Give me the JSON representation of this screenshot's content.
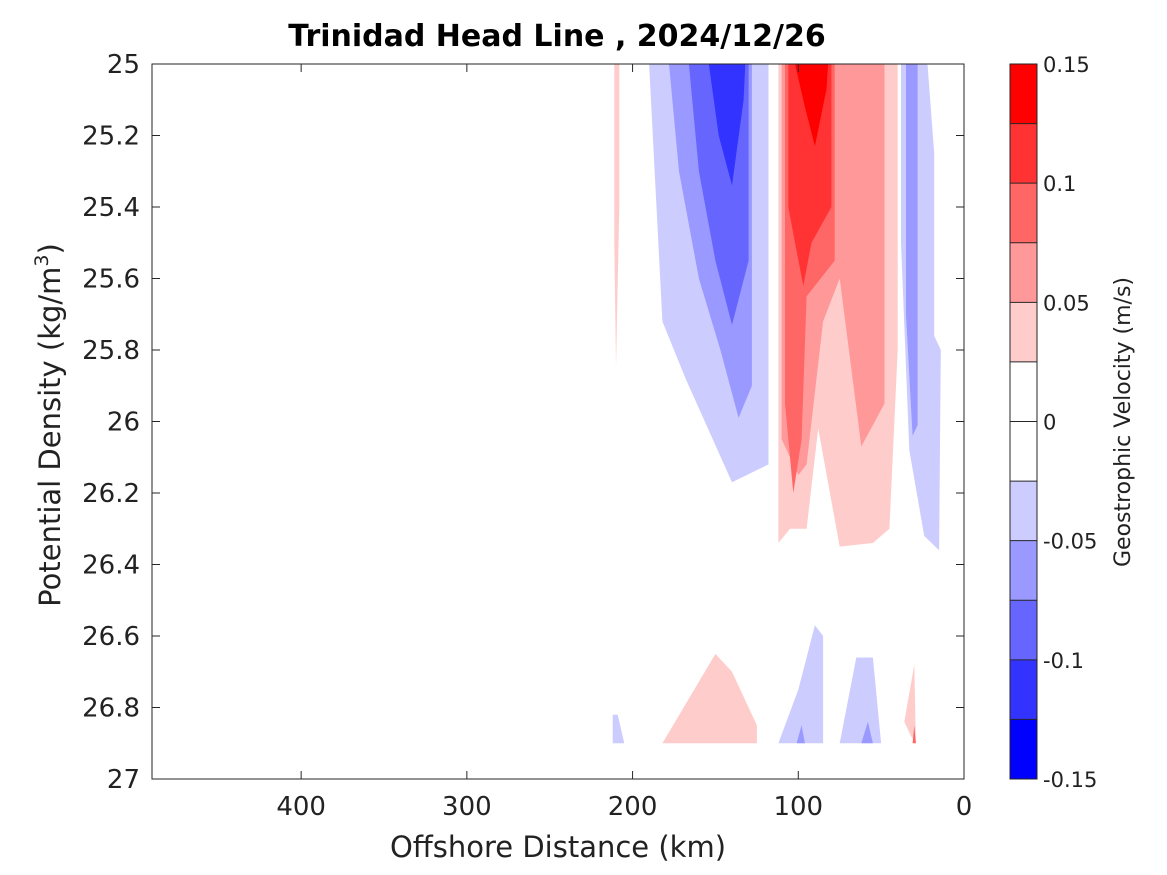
{
  "chart_data": {
    "type": "contour",
    "title": "Trinidad Head Line , 2024/12/26",
    "xlabel": "Offshore Distance (km)",
    "ylabel_main": "Potential Density (kg/m",
    "ylabel_sup": "3",
    "ylabel_close": ")",
    "colorbar_label": "Geostrophic Velocity (m/s)",
    "x_range": [
      490,
      0
    ],
    "x_reversed": true,
    "y_range": [
      25,
      27
    ],
    "y_reversed": true,
    "x_ticks": [
      400,
      300,
      200,
      100,
      0
    ],
    "x_tick_labels": [
      "400",
      "300",
      "200",
      "100",
      "0"
    ],
    "y_ticks": [
      25,
      25.2,
      25.4,
      25.6,
      25.8,
      26,
      26.2,
      26.4,
      26.6,
      26.8,
      27
    ],
    "y_tick_labels": [
      "25",
      "25.2",
      "25.4",
      "25.6",
      "25.8",
      "26",
      "26.2",
      "26.4",
      "26.6",
      "26.8",
      "27"
    ],
    "colorbar_levels": [
      -0.15,
      -0.125,
      -0.1,
      -0.075,
      -0.05,
      -0.025,
      0,
      0.025,
      0.05,
      0.075,
      0.1,
      0.125,
      0.15
    ],
    "colorbar_colors": [
      "#0000ff",
      "#3333ff",
      "#6666ff",
      "#9999ff",
      "#ccccff",
      "#ffffff",
      "#ffffff",
      "#ffcccc",
      "#ff9999",
      "#ff6666",
      "#ff3333",
      "#ff0000"
    ],
    "colorbar_ticks": [
      0.15,
      0.1,
      0.05,
      0,
      -0.05,
      -0.1,
      -0.15
    ],
    "colorbar_tick_labels": [
      "0.15",
      "0.1",
      "0.05",
      "0",
      "-0.05",
      "-0.1",
      "-0.15"
    ],
    "contour_regions": [
      {
        "level": -0.05,
        "color": "#ccccff",
        "points": [
          [
            190,
            25
          ],
          [
            118,
            25
          ],
          [
            118,
            26.12
          ],
          [
            140,
            26.17
          ],
          [
            168,
            25.88
          ],
          [
            182,
            25.72
          ]
        ]
      },
      {
        "level": -0.075,
        "color": "#9999ff",
        "points": [
          [
            178,
            25
          ],
          [
            128,
            25
          ],
          [
            128,
            25.9
          ],
          [
            136,
            25.99
          ],
          [
            147,
            25.8
          ],
          [
            160,
            25.6
          ],
          [
            172,
            25.3
          ]
        ]
      },
      {
        "level": -0.1,
        "color": "#6666ff",
        "points": [
          [
            166,
            25
          ],
          [
            130,
            25
          ],
          [
            130,
            25.55
          ],
          [
            140,
            25.73
          ],
          [
            150,
            25.55
          ],
          [
            160,
            25.3
          ]
        ]
      },
      {
        "level": -0.125,
        "color": "#3333ff",
        "points": [
          [
            154,
            25
          ],
          [
            132,
            25
          ],
          [
            133,
            25.1
          ],
          [
            140,
            25.34
          ],
          [
            148,
            25.2
          ]
        ]
      },
      {
        "level": -0.05,
        "color": "#ccccff",
        "points": [
          [
            38,
            25
          ],
          [
            22,
            25
          ],
          [
            18,
            25.25
          ],
          [
            18,
            25.76
          ],
          [
            14,
            25.8
          ],
          [
            15,
            26.36
          ],
          [
            24,
            26.32
          ],
          [
            33,
            26.08
          ],
          [
            38,
            25.5
          ]
        ]
      },
      {
        "level": -0.075,
        "color": "#9999ff",
        "points": [
          [
            35,
            25
          ],
          [
            28,
            25
          ],
          [
            28,
            26.01
          ],
          [
            31,
            26.04
          ],
          [
            35,
            25.7
          ]
        ]
      },
      {
        "level": 0.05,
        "color": "#ffcccc",
        "points": [
          [
            112,
            25
          ],
          [
            40,
            25
          ],
          [
            40,
            25.8
          ],
          [
            45,
            26.3
          ],
          [
            55,
            26.34
          ],
          [
            75,
            26.35
          ],
          [
            88,
            26.02
          ],
          [
            95,
            26.3
          ],
          [
            105,
            26.3
          ],
          [
            112,
            26.34
          ]
        ]
      },
      {
        "level": 0.075,
        "color": "#ff9999",
        "points": [
          [
            110,
            25
          ],
          [
            48,
            25
          ],
          [
            48,
            25.95
          ],
          [
            62,
            26.07
          ],
          [
            75,
            25.6
          ],
          [
            85,
            25.72
          ],
          [
            95,
            26.12
          ],
          [
            100,
            26.15
          ],
          [
            110,
            26.05
          ]
        ]
      },
      {
        "level": 0.1,
        "color": "#ff6666",
        "points": [
          [
            108,
            25
          ],
          [
            78,
            25
          ],
          [
            78,
            25.55
          ],
          [
            95,
            25.65
          ],
          [
            98,
            26.05
          ],
          [
            103,
            26.2
          ],
          [
            108,
            25.95
          ]
        ]
      },
      {
        "level": 0.125,
        "color": "#ff3333",
        "points": [
          [
            106,
            25
          ],
          [
            80,
            25
          ],
          [
            80,
            25.4
          ],
          [
            92,
            25.5
          ],
          [
            97,
            25.62
          ],
          [
            102,
            25.5
          ],
          [
            106,
            25.4
          ]
        ]
      },
      {
        "level": 0.15,
        "color": "#ff0000",
        "points": [
          [
            102,
            25
          ],
          [
            82,
            25
          ],
          [
            83,
            25.07
          ],
          [
            90,
            25.23
          ],
          [
            96,
            25.12
          ]
        ]
      },
      {
        "level": 0.05,
        "color": "#ffcccc",
        "points": [
          [
            211,
            25
          ],
          [
            208,
            25
          ],
          [
            208,
            25.4
          ],
          [
            210,
            25.85
          ],
          [
            211,
            25.5
          ]
        ]
      },
      {
        "level": -0.05,
        "color": "#ccccff",
        "points": [
          [
            212,
            26.82
          ],
          [
            209,
            26.82
          ],
          [
            205,
            26.9
          ],
          [
            212,
            26.9
          ]
        ]
      },
      {
        "level": 0.05,
        "color": "#ffcccc",
        "points": [
          [
            182,
            26.9
          ],
          [
            150,
            26.65
          ],
          [
            140,
            26.7
          ],
          [
            125,
            26.85
          ],
          [
            125,
            26.9
          ]
        ]
      },
      {
        "level": -0.05,
        "color": "#ccccff",
        "points": [
          [
            112,
            26.9
          ],
          [
            100,
            26.75
          ],
          [
            90,
            26.57
          ],
          [
            85,
            26.6
          ],
          [
            85,
            26.9
          ]
        ]
      },
      {
        "level": -0.075,
        "color": "#9999ff",
        "points": [
          [
            101,
            26.9
          ],
          [
            98,
            26.85
          ],
          [
            96,
            26.9
          ]
        ]
      },
      {
        "level": -0.05,
        "color": "#ccccff",
        "points": [
          [
            75,
            26.9
          ],
          [
            70,
            26.78
          ],
          [
            65,
            26.66
          ],
          [
            55,
            26.66
          ],
          [
            50,
            26.9
          ]
        ]
      },
      {
        "level": -0.075,
        "color": "#9999ff",
        "points": [
          [
            62,
            26.9
          ],
          [
            58,
            26.84
          ],
          [
            55,
            26.9
          ]
        ]
      },
      {
        "level": 0.05,
        "color": "#ffcccc",
        "points": [
          [
            36,
            26.84
          ],
          [
            30,
            26.68
          ],
          [
            29,
            26.9
          ],
          [
            32,
            26.88
          ]
        ]
      },
      {
        "level": 0.1,
        "color": "#ff6666",
        "points": [
          [
            31,
            26.9
          ],
          [
            30,
            26.85
          ],
          [
            29,
            26.9
          ]
        ]
      }
    ]
  }
}
